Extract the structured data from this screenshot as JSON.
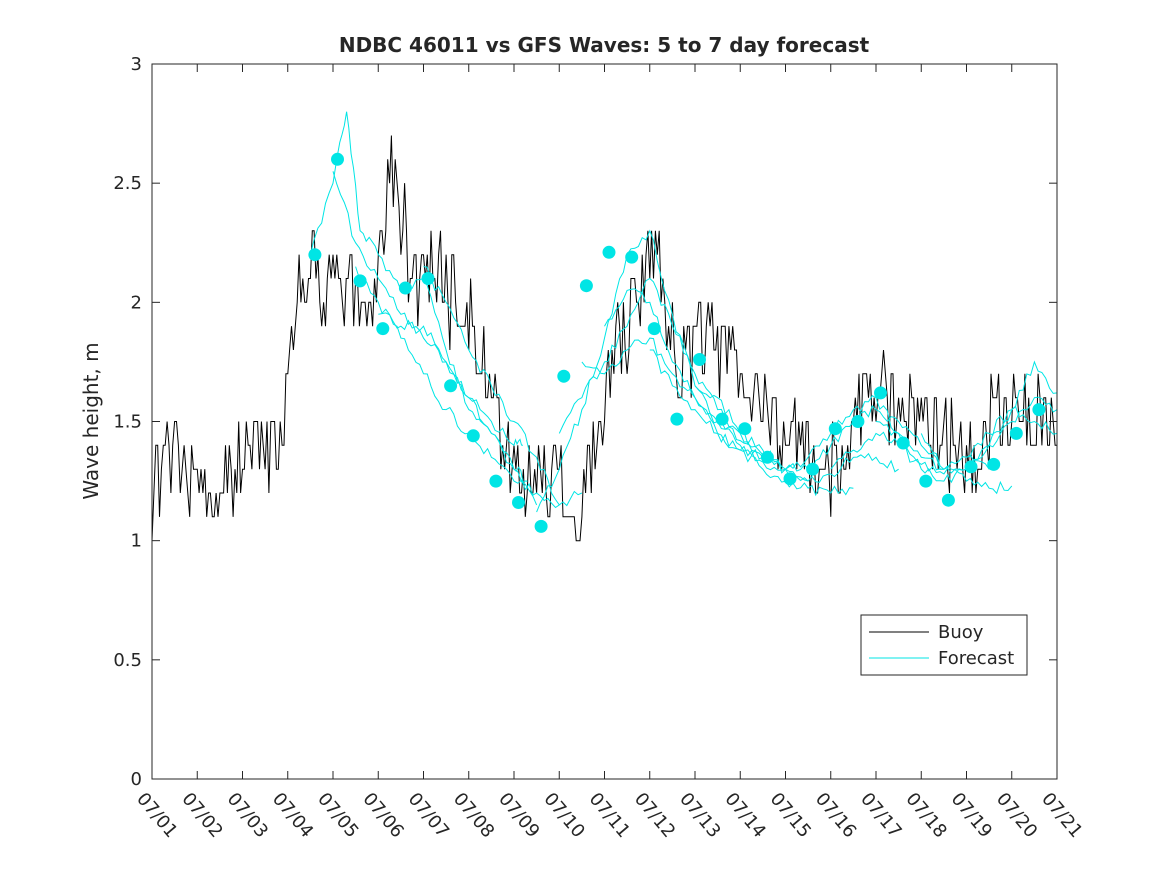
{
  "chart_data": {
    "type": "line",
    "title": "NDBC 46011 vs GFS Waves: 5 to 7 day forecast",
    "xlabel": "",
    "ylabel": "Wave height, m",
    "xlim": [
      0,
      20
    ],
    "ylim": [
      0,
      3
    ],
    "grid": false,
    "legend_position": "bottom-right",
    "x_tick_labels": [
      "07/01",
      "07/02",
      "07/03",
      "07/04",
      "07/05",
      "07/06",
      "07/07",
      "07/08",
      "07/09",
      "07/10",
      "07/11",
      "07/12",
      "07/13",
      "07/14",
      "07/15",
      "07/16",
      "07/17",
      "07/18",
      "07/19",
      "07/20",
      "07/21"
    ],
    "y_ticks": [
      0,
      0.5,
      1,
      1.5,
      2,
      2.5,
      3
    ],
    "y_tick_labels": [
      "0",
      "0.5",
      "1",
      "1.5",
      "2",
      "2.5",
      "3"
    ],
    "colors": {
      "buoy": "#000000",
      "forecast": "#00e5e5",
      "axes": "#262626"
    },
    "legend": [
      {
        "name": "Buoy",
        "style": "line",
        "color": "#000000"
      },
      {
        "name": "Forecast",
        "style": "line",
        "color": "#00e5e5"
      }
    ],
    "buoy_profile": [
      [
        0.0,
        1.15
      ],
      [
        0.2,
        1.28
      ],
      [
        0.4,
        1.3
      ],
      [
        0.6,
        1.35
      ],
      [
        0.8,
        1.28
      ],
      [
        1.0,
        1.25
      ],
      [
        1.2,
        1.22
      ],
      [
        1.4,
        1.2
      ],
      [
        1.6,
        1.25
      ],
      [
        1.8,
        1.3
      ],
      [
        2.0,
        1.32
      ],
      [
        2.2,
        1.35
      ],
      [
        2.4,
        1.4
      ],
      [
        2.6,
        1.35
      ],
      [
        2.8,
        1.4
      ],
      [
        3.0,
        1.65
      ],
      [
        3.1,
        1.95
      ],
      [
        3.3,
        2.15
      ],
      [
        3.5,
        2.2
      ],
      [
        3.7,
        2.05
      ],
      [
        3.9,
        2.05
      ],
      [
        4.1,
        2.15
      ],
      [
        4.3,
        2.1
      ],
      [
        4.5,
        2.0
      ],
      [
        4.7,
        2.05
      ],
      [
        4.9,
        2.0
      ],
      [
        5.0,
        2.1
      ],
      [
        5.1,
        2.3
      ],
      [
        5.2,
        2.45
      ],
      [
        5.3,
        2.55
      ],
      [
        5.4,
        2.5
      ],
      [
        5.5,
        2.35
      ],
      [
        5.6,
        2.25
      ],
      [
        5.8,
        2.15
      ],
      [
        6.0,
        2.05
      ],
      [
        6.2,
        2.1
      ],
      [
        6.4,
        2.15
      ],
      [
        6.6,
        2.0
      ],
      [
        6.8,
        1.95
      ],
      [
        7.0,
        1.95
      ],
      [
        7.2,
        1.85
      ],
      [
        7.4,
        1.7
      ],
      [
        7.6,
        1.55
      ],
      [
        7.8,
        1.4
      ],
      [
        8.0,
        1.35
      ],
      [
        8.2,
        1.3
      ],
      [
        8.4,
        1.25
      ],
      [
        8.6,
        1.22
      ],
      [
        8.8,
        1.25
      ],
      [
        9.0,
        1.2
      ],
      [
        9.2,
        1.2
      ],
      [
        9.4,
        1.15
      ],
      [
        9.6,
        1.25
      ],
      [
        9.8,
        1.4
      ],
      [
        10.0,
        1.6
      ],
      [
        10.2,
        1.8
      ],
      [
        10.4,
        1.9
      ],
      [
        10.6,
        1.95
      ],
      [
        10.8,
        2.05
      ],
      [
        11.0,
        2.15
      ],
      [
        11.2,
        2.15
      ],
      [
        11.4,
        1.95
      ],
      [
        11.6,
        1.8
      ],
      [
        11.8,
        1.75
      ],
      [
        12.0,
        1.8
      ],
      [
        12.2,
        1.85
      ],
      [
        12.4,
        1.9
      ],
      [
        12.6,
        1.75
      ],
      [
        12.8,
        1.75
      ],
      [
        13.0,
        1.75
      ],
      [
        13.2,
        1.7
      ],
      [
        13.4,
        1.6
      ],
      [
        13.6,
        1.5
      ],
      [
        13.8,
        1.45
      ],
      [
        14.0,
        1.4
      ],
      [
        14.2,
        1.4
      ],
      [
        14.4,
        1.35
      ],
      [
        14.6,
        1.35
      ],
      [
        14.8,
        1.3
      ],
      [
        15.0,
        1.3
      ],
      [
        15.2,
        1.3
      ],
      [
        15.4,
        1.4
      ],
      [
        15.6,
        1.55
      ],
      [
        15.8,
        1.6
      ],
      [
        16.0,
        1.6
      ],
      [
        16.2,
        1.6
      ],
      [
        16.4,
        1.55
      ],
      [
        16.6,
        1.5
      ],
      [
        16.8,
        1.5
      ],
      [
        17.0,
        1.5
      ],
      [
        17.2,
        1.45
      ],
      [
        17.4,
        1.45
      ],
      [
        17.6,
        1.4
      ],
      [
        17.8,
        1.4
      ],
      [
        18.0,
        1.4
      ],
      [
        18.2,
        1.4
      ],
      [
        18.4,
        1.45
      ],
      [
        18.6,
        1.5
      ],
      [
        18.8,
        1.55
      ],
      [
        19.0,
        1.55
      ],
      [
        19.2,
        1.55
      ],
      [
        19.4,
        1.5
      ],
      [
        19.6,
        1.5
      ],
      [
        19.8,
        1.45
      ],
      [
        20.0,
        1.5
      ]
    ],
    "forecast_markers": [
      [
        3.6,
        2.2
      ],
      [
        4.1,
        2.6
      ],
      [
        4.6,
        2.09
      ],
      [
        5.1,
        1.89
      ],
      [
        5.6,
        2.06
      ],
      [
        6.1,
        2.1
      ],
      [
        6.6,
        1.65
      ],
      [
        7.1,
        1.44
      ],
      [
        7.6,
        1.25
      ],
      [
        8.1,
        1.16
      ],
      [
        8.6,
        1.06
      ],
      [
        9.1,
        1.69
      ],
      [
        9.6,
        2.07
      ],
      [
        10.1,
        2.21
      ],
      [
        10.6,
        2.19
      ],
      [
        11.1,
        1.89
      ],
      [
        11.6,
        1.51
      ],
      [
        12.1,
        1.76
      ],
      [
        12.6,
        1.51
      ],
      [
        13.1,
        1.47
      ],
      [
        13.6,
        1.35
      ],
      [
        14.1,
        1.26
      ],
      [
        14.6,
        1.3
      ],
      [
        15.1,
        1.47
      ],
      [
        15.6,
        1.5
      ],
      [
        16.1,
        1.62
      ],
      [
        16.6,
        1.41
      ],
      [
        17.1,
        1.25
      ],
      [
        17.6,
        1.17
      ],
      [
        18.1,
        1.31
      ],
      [
        18.6,
        1.32
      ],
      [
        19.1,
        1.45
      ],
      [
        19.6,
        1.55
      ]
    ],
    "forecast_lines": [
      [
        [
          3.5,
          2.2
        ],
        [
          4.0,
          2.5
        ],
        [
          4.3,
          2.8
        ],
        [
          4.6,
          2.3
        ],
        [
          5.0,
          2.2
        ],
        [
          5.5,
          2.05
        ],
        [
          6.0,
          2.1
        ],
        [
          6.5,
          1.8
        ],
        [
          7.0,
          1.55
        ],
        [
          7.5,
          1.45
        ],
        [
          8.0,
          1.3
        ],
        [
          8.3,
          1.25
        ]
      ],
      [
        [
          4.0,
          2.55
        ],
        [
          4.5,
          2.25
        ],
        [
          5.0,
          2.1
        ],
        [
          5.5,
          1.95
        ],
        [
          6.0,
          1.85
        ],
        [
          6.5,
          1.75
        ],
        [
          7.0,
          1.6
        ],
        [
          7.5,
          1.45
        ],
        [
          8.0,
          1.3
        ],
        [
          8.5,
          1.15
        ]
      ],
      [
        [
          4.5,
          2.15
        ],
        [
          5.0,
          2.0
        ],
        [
          5.5,
          1.85
        ],
        [
          6.0,
          1.7
        ],
        [
          6.5,
          1.55
        ],
        [
          7.0,
          1.45
        ],
        [
          7.5,
          1.35
        ],
        [
          8.0,
          1.25
        ],
        [
          8.5,
          1.2
        ],
        [
          9.0,
          1.15
        ]
      ],
      [
        [
          5.0,
          1.95
        ],
        [
          5.5,
          1.9
        ],
        [
          6.0,
          1.9
        ],
        [
          6.5,
          1.75
        ],
        [
          7.0,
          1.6
        ],
        [
          7.5,
          1.5
        ],
        [
          8.0,
          1.4
        ],
        [
          8.2,
          1.4
        ]
      ],
      [
        [
          6.0,
          2.15
        ],
        [
          6.5,
          2.0
        ],
        [
          7.0,
          1.8
        ],
        [
          7.5,
          1.65
        ],
        [
          8.0,
          1.5
        ],
        [
          8.5,
          1.35
        ],
        [
          9.0,
          1.15
        ],
        [
          9.5,
          1.2
        ]
      ],
      [
        [
          8.5,
          1.12
        ],
        [
          9.0,
          1.3
        ],
        [
          9.5,
          1.55
        ],
        [
          10.0,
          1.85
        ],
        [
          10.5,
          2.2
        ],
        [
          11.0,
          2.3
        ],
        [
          11.5,
          1.95
        ],
        [
          12.0,
          1.65
        ],
        [
          12.5,
          1.6
        ],
        [
          13.0,
          1.45
        ]
      ],
      [
        [
          9.0,
          1.45
        ],
        [
          9.5,
          1.6
        ],
        [
          10.0,
          1.75
        ],
        [
          10.5,
          1.9
        ],
        [
          11.0,
          2.1
        ],
        [
          11.5,
          1.9
        ],
        [
          12.0,
          1.7
        ],
        [
          12.5,
          1.55
        ],
        [
          13.0,
          1.45
        ],
        [
          13.5,
          1.35
        ]
      ],
      [
        [
          9.5,
          1.75
        ],
        [
          10.0,
          1.7
        ],
        [
          10.5,
          1.8
        ],
        [
          11.0,
          1.85
        ],
        [
          11.5,
          1.7
        ],
        [
          12.0,
          1.6
        ],
        [
          12.5,
          1.5
        ],
        [
          13.0,
          1.4
        ],
        [
          13.5,
          1.35
        ],
        [
          14.0,
          1.3
        ]
      ],
      [
        [
          10.0,
          1.9
        ],
        [
          10.5,
          2.05
        ],
        [
          11.0,
          2.0
        ],
        [
          11.5,
          1.75
        ],
        [
          12.0,
          1.6
        ],
        [
          12.5,
          1.45
        ],
        [
          13.0,
          1.38
        ],
        [
          13.5,
          1.33
        ],
        [
          14.0,
          1.3
        ],
        [
          14.5,
          1.25
        ]
      ],
      [
        [
          11.0,
          1.8
        ],
        [
          11.5,
          1.65
        ],
        [
          12.0,
          1.55
        ],
        [
          12.5,
          1.45
        ],
        [
          13.0,
          1.38
        ],
        [
          13.5,
          1.3
        ],
        [
          14.0,
          1.25
        ],
        [
          14.5,
          1.22
        ],
        [
          15.0,
          1.2
        ],
        [
          15.5,
          1.22
        ]
      ],
      [
        [
          12.0,
          1.65
        ],
        [
          12.5,
          1.5
        ],
        [
          13.0,
          1.42
        ],
        [
          13.5,
          1.36
        ],
        [
          14.0,
          1.3
        ],
        [
          14.5,
          1.25
        ],
        [
          15.0,
          1.28
        ],
        [
          15.5,
          1.35
        ],
        [
          16.0,
          1.35
        ],
        [
          16.5,
          1.3
        ]
      ],
      [
        [
          13.0,
          1.45
        ],
        [
          13.5,
          1.38
        ],
        [
          14.0,
          1.3
        ],
        [
          14.5,
          1.3
        ],
        [
          15.0,
          1.4
        ],
        [
          15.5,
          1.5
        ],
        [
          16.0,
          1.55
        ],
        [
          16.5,
          1.5
        ],
        [
          17.0,
          1.4
        ],
        [
          17.5,
          1.3
        ]
      ],
      [
        [
          14.0,
          1.3
        ],
        [
          14.5,
          1.35
        ],
        [
          15.0,
          1.45
        ],
        [
          15.5,
          1.55
        ],
        [
          16.0,
          1.6
        ],
        [
          16.5,
          1.45
        ],
        [
          17.0,
          1.35
        ],
        [
          17.5,
          1.3
        ],
        [
          18.0,
          1.35
        ],
        [
          18.5,
          1.3
        ]
      ],
      [
        [
          15.0,
          1.3
        ],
        [
          15.5,
          1.38
        ],
        [
          16.0,
          1.45
        ],
        [
          16.5,
          1.4
        ],
        [
          17.0,
          1.3
        ],
        [
          17.5,
          1.25
        ],
        [
          18.0,
          1.3
        ],
        [
          18.5,
          1.4
        ],
        [
          19.0,
          1.5
        ],
        [
          19.5,
          1.6
        ],
        [
          20.0,
          1.55
        ]
      ],
      [
        [
          16.0,
          1.5
        ],
        [
          16.5,
          1.45
        ],
        [
          17.0,
          1.32
        ],
        [
          17.5,
          1.28
        ],
        [
          18.0,
          1.3
        ],
        [
          18.5,
          1.4
        ],
        [
          19.0,
          1.55
        ],
        [
          19.5,
          1.75
        ],
        [
          20.0,
          1.62
        ]
      ],
      [
        [
          17.0,
          1.45
        ],
        [
          17.5,
          1.3
        ],
        [
          18.0,
          1.25
        ],
        [
          18.5,
          1.22
        ],
        [
          19.0,
          1.23
        ]
      ],
      [
        [
          18.0,
          1.35
        ],
        [
          18.5,
          1.45
        ],
        [
          19.0,
          1.55
        ],
        [
          19.5,
          1.5
        ],
        [
          20.0,
          1.45
        ]
      ]
    ]
  }
}
